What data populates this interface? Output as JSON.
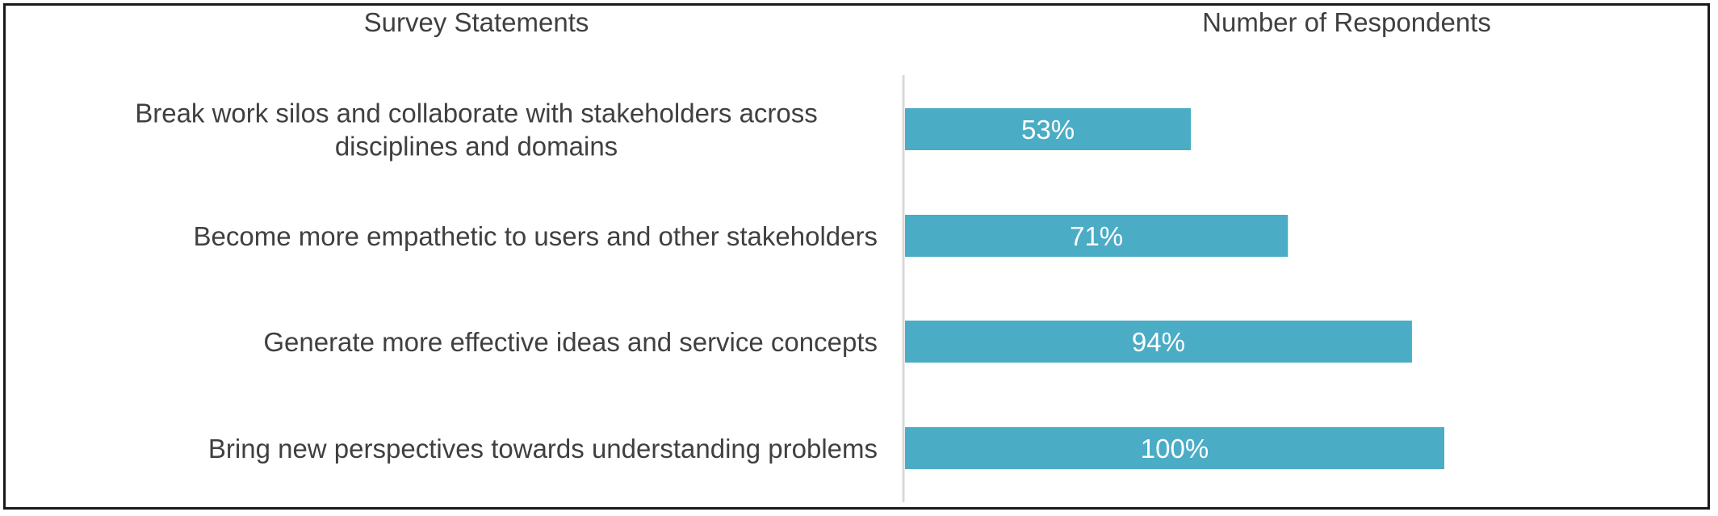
{
  "chart_data": {
    "type": "bar",
    "orientation": "horizontal",
    "left_header": "Survey Statements",
    "right_header": "Number of Respondents",
    "categories": [
      [
        "Break work silos and collaborate with stakeholders across",
        "disciplines and domains"
      ],
      [
        "Become more empathetic to users and other stakeholders"
      ],
      [
        "Generate more effective ideas and service concepts"
      ],
      [
        "Bring new perspectives towards understanding problems"
      ]
    ],
    "values": [
      53,
      71,
      94,
      100
    ],
    "value_labels": [
      "53%",
      "71%",
      "94%",
      "100%"
    ],
    "unit": "%",
    "xlim": [
      0,
      100
    ],
    "grid": false,
    "legend": "none",
    "colors": {
      "bar": "#4bacc6",
      "axis": "#d9d9d9",
      "text": "#404040",
      "data_label": "#ffffff",
      "frame": "#1a1a1a"
    }
  }
}
